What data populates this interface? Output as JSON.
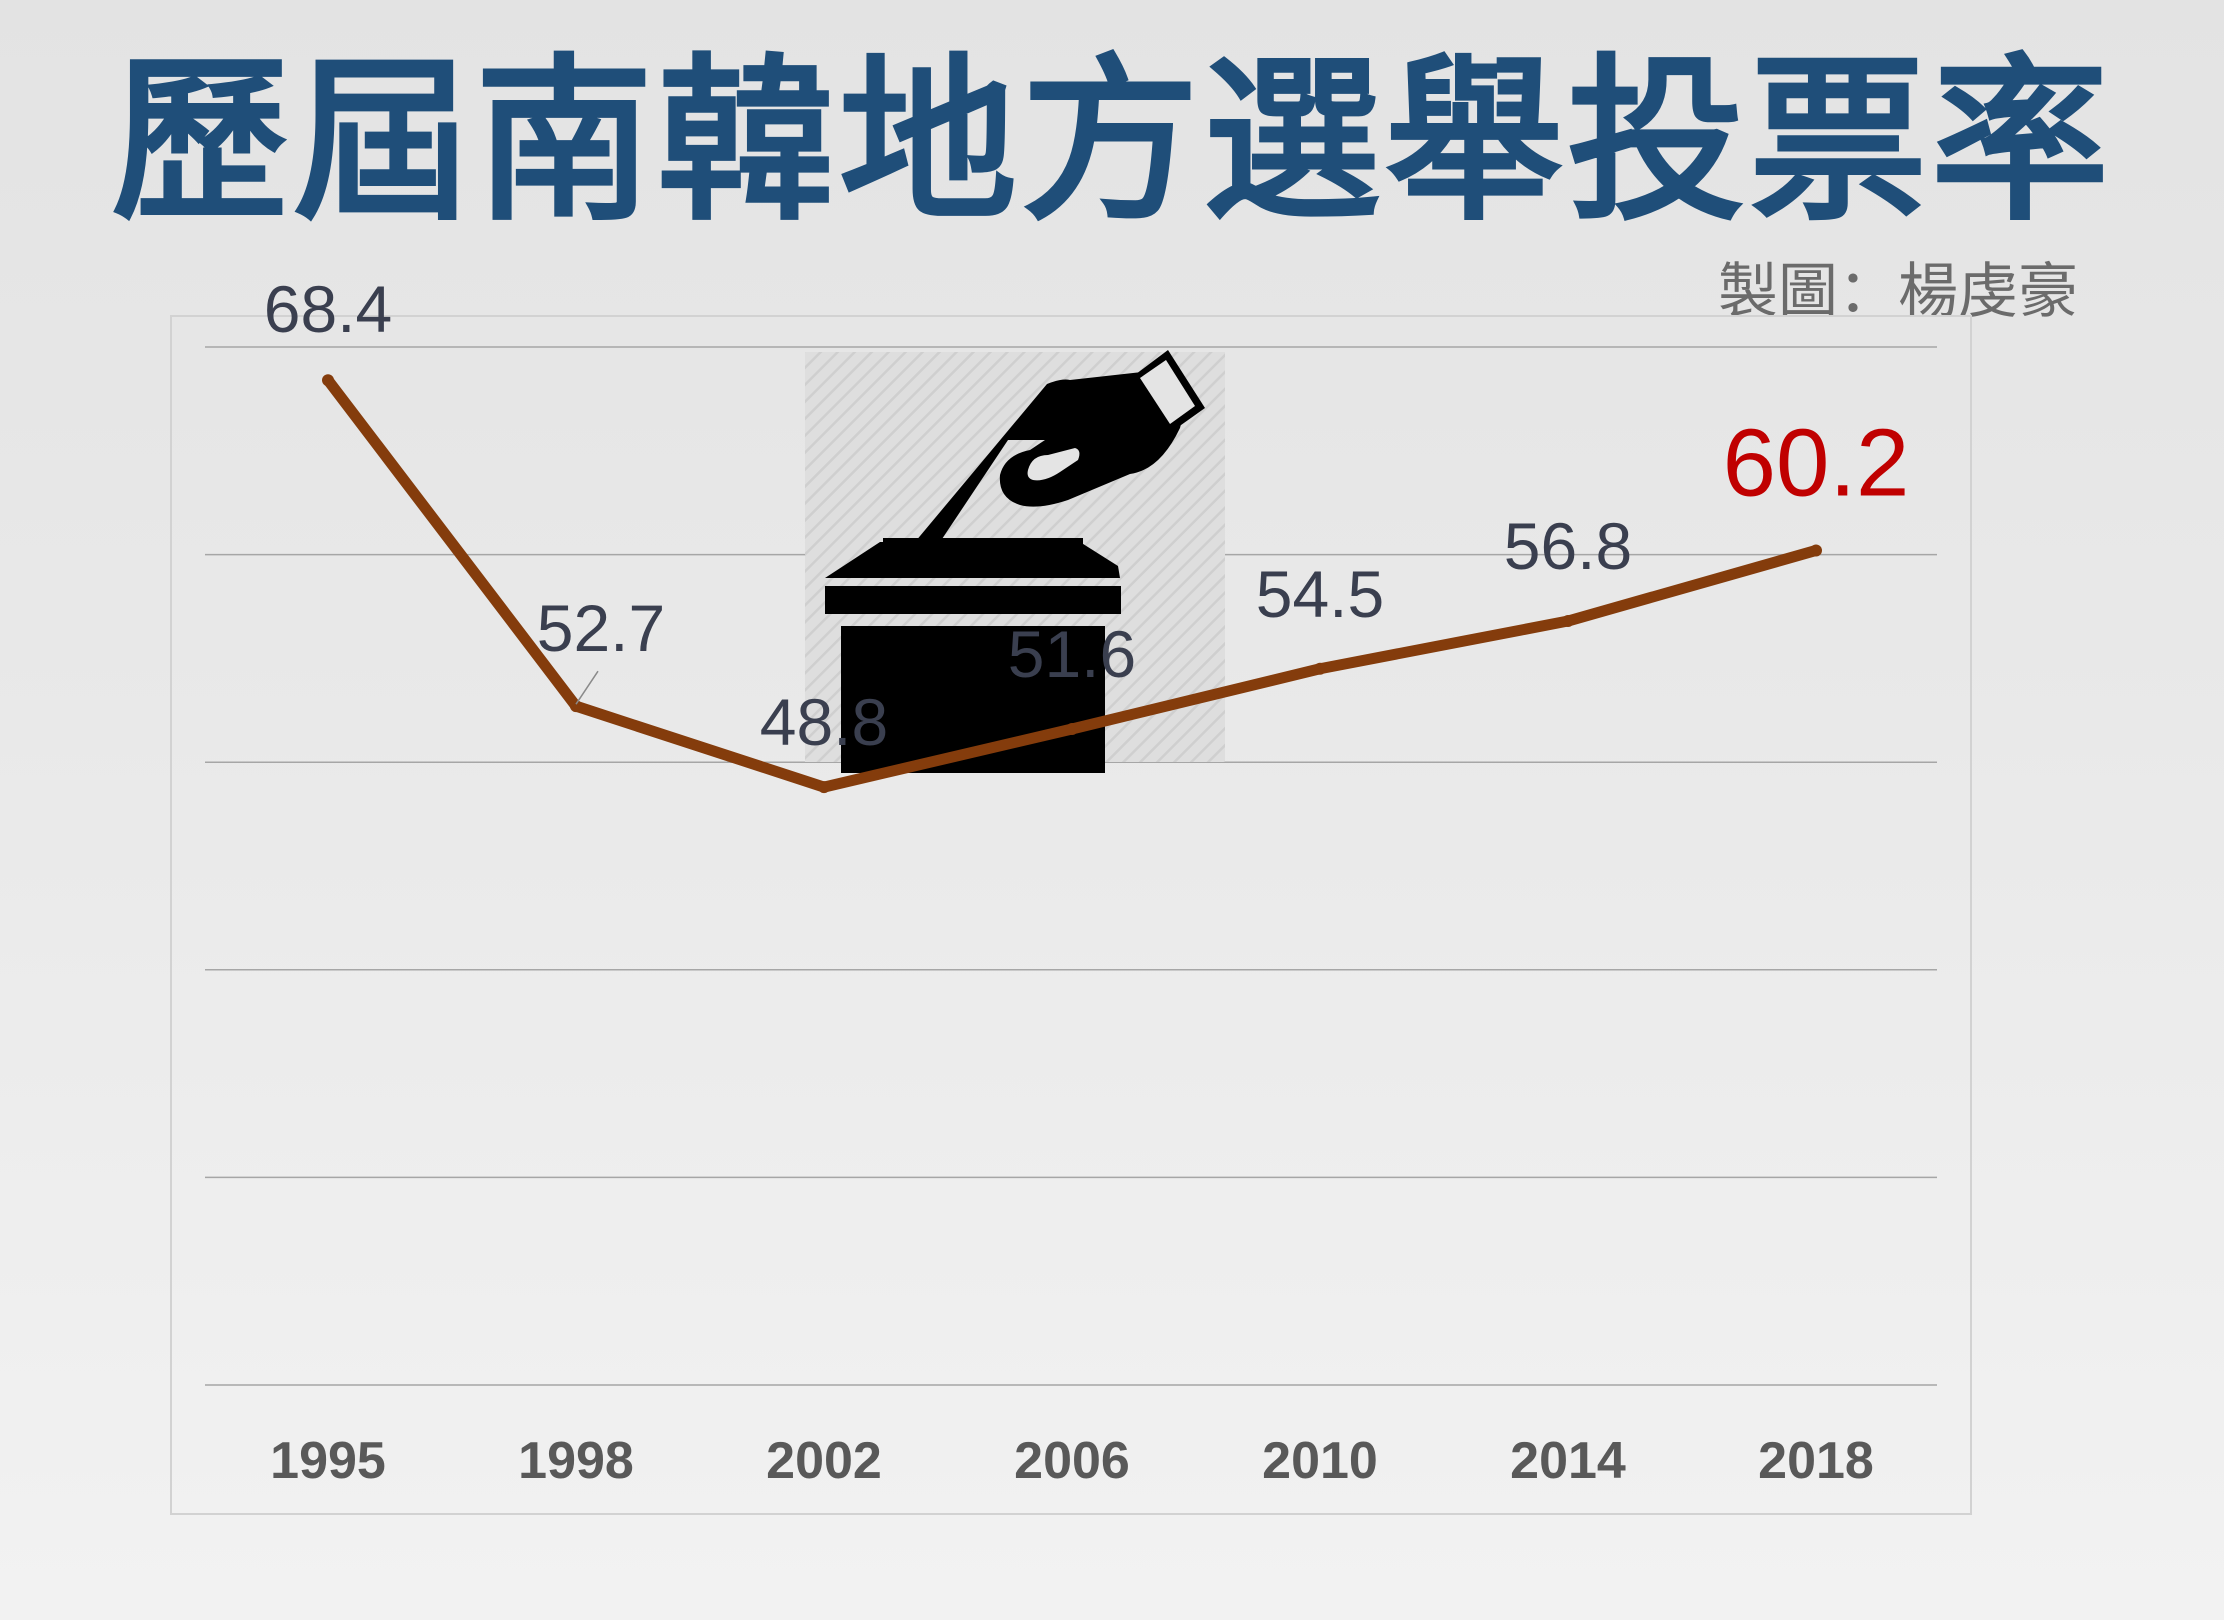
{
  "title": "歷屆南韓地方選舉投票率",
  "credit": "製圖：楊虔豪",
  "colors": {
    "title": "#1f4e79",
    "line": "#843c0c",
    "label": "#3a3f4f",
    "highlight": "#c00000",
    "axis_label": "#595959",
    "grid": "#a6a6a6",
    "icon": "#000000"
  },
  "icon": "ballot-box-icon",
  "chart_data": {
    "type": "line",
    "categories": [
      "1995",
      "1998",
      "2002",
      "2006",
      "2010",
      "2014",
      "2018"
    ],
    "series": [
      {
        "values": [
          68.4,
          52.7,
          48.8,
          51.6,
          54.5,
          56.8,
          60.2
        ]
      }
    ],
    "data_labels": [
      "68.4",
      "52.7",
      "48.8",
      "51.6",
      "54.5",
      "56.8",
      "60.2"
    ],
    "highlight_index": 6,
    "ylim": [
      20,
      70
    ],
    "grid": true,
    "legend": false
  }
}
